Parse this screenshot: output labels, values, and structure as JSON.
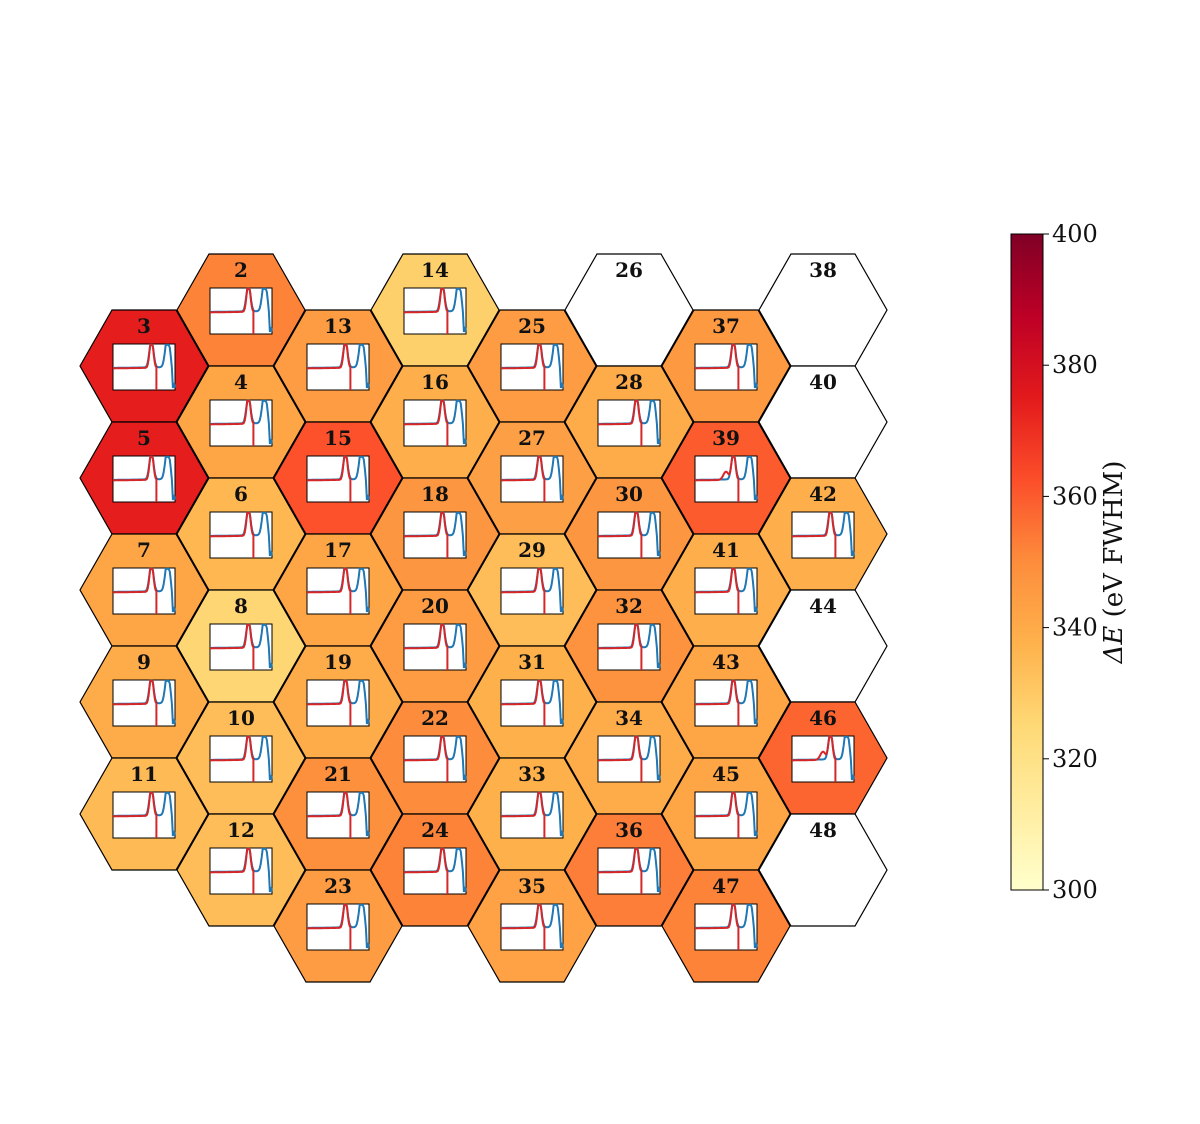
{
  "chart_data": {
    "type": "heatmap",
    "layout": "hexagonal grid of detector channels, each with an inset spectrum",
    "colormap": "YlOrRd",
    "colorbar": {
      "label": "ΔE (eV FWHM)",
      "label_symbol": "ΔE",
      "label_unit": "(eV FWHM)",
      "range": [
        300,
        400
      ],
      "ticks": [
        "300",
        "320",
        "340",
        "360",
        "380",
        "400"
      ]
    },
    "inset_colors": {
      "measured": "#1f77b4",
      "fit": "#d62728"
    },
    "columns": [
      [
        {
          "id": "3",
          "value": 374
        },
        {
          "id": "5",
          "value": 374
        },
        {
          "id": "7",
          "value": 342
        },
        {
          "id": "9",
          "value": 340
        },
        {
          "id": "11",
          "value": 335
        }
      ],
      [
        {
          "id": "2",
          "value": 352
        },
        {
          "id": "4",
          "value": 342
        },
        {
          "id": "6",
          "value": 336
        },
        {
          "id": "8",
          "value": 326
        },
        {
          "id": "10",
          "value": 334
        },
        {
          "id": "12",
          "value": 334
        }
      ],
      [
        {
          "id": "13",
          "value": 345
        },
        {
          "id": "15",
          "value": 362
        },
        {
          "id": "17",
          "value": 342
        },
        {
          "id": "19",
          "value": 340
        },
        {
          "id": "21",
          "value": 349
        },
        {
          "id": "23",
          "value": 345
        }
      ],
      [
        {
          "id": "14",
          "value": 328
        },
        {
          "id": "16",
          "value": 339
        },
        {
          "id": "18",
          "value": 347
        },
        {
          "id": "20",
          "value": 345
        },
        {
          "id": "22",
          "value": 350
        },
        {
          "id": "24",
          "value": 352
        }
      ],
      [
        {
          "id": "25",
          "value": 345
        },
        {
          "id": "27",
          "value": 344
        },
        {
          "id": "29",
          "value": 334
        },
        {
          "id": "31",
          "value": 338
        },
        {
          "id": "33",
          "value": 338
        },
        {
          "id": "35",
          "value": 343
        }
      ],
      [
        {
          "id": "26",
          "value": null
        },
        {
          "id": "28",
          "value": 340
        },
        {
          "id": "30",
          "value": 347
        },
        {
          "id": "32",
          "value": 348
        },
        {
          "id": "34",
          "value": 340
        },
        {
          "id": "36",
          "value": 353
        }
      ],
      [
        {
          "id": "37",
          "value": 346
        },
        {
          "id": "39",
          "value": 360
        },
        {
          "id": "41",
          "value": 339
        },
        {
          "id": "43",
          "value": 342
        },
        {
          "id": "45",
          "value": 342
        },
        {
          "id": "47",
          "value": 352
        }
      ],
      [
        {
          "id": "38",
          "value": null
        },
        {
          "id": "40",
          "value": null
        },
        {
          "id": "42",
          "value": 339
        },
        {
          "id": "44",
          "value": null
        },
        {
          "id": "46",
          "value": 358
        },
        {
          "id": "48",
          "value": null
        }
      ]
    ]
  }
}
